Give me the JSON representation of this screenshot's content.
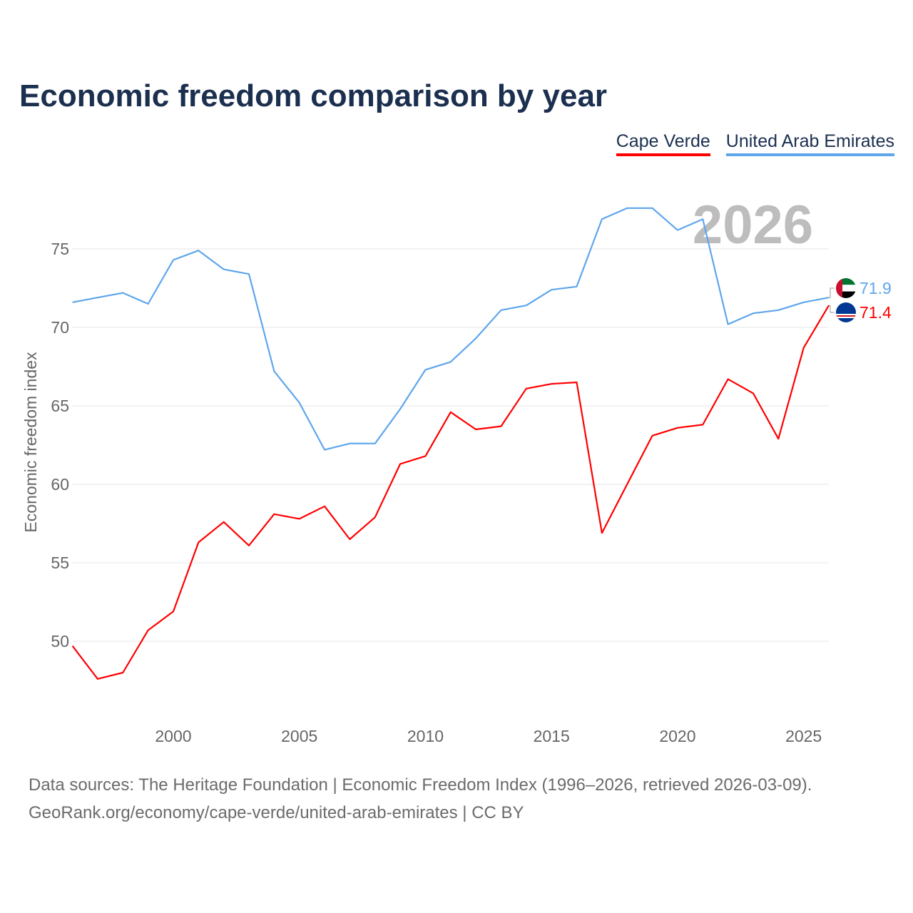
{
  "title": "Economic freedom comparison by year",
  "footer": {
    "line1": "Data sources: The Heritage Foundation | Economic Freedom Index (1996–2026, retrieved 2026-03-09).",
    "line2": "GeoRank.org/economy/cape-verde/united-arab-emirates | CC BY"
  },
  "chart_data": {
    "type": "line",
    "title": "Economic freedom comparison by year",
    "xlabel": "",
    "ylabel": "Economic freedom index",
    "watermark_year": "2026",
    "xlim": [
      1996,
      2026
    ],
    "ylim": [
      45.2,
      79.5
    ],
    "xticks": [
      2000,
      2005,
      2010,
      2015,
      2020,
      2025
    ],
    "yticks": [
      50,
      55,
      60,
      65,
      70,
      75
    ],
    "grid": true,
    "legend_position": "top-right",
    "x": [
      1996,
      1997,
      1998,
      1999,
      2000,
      2001,
      2002,
      2003,
      2004,
      2005,
      2006,
      2007,
      2008,
      2009,
      2010,
      2011,
      2012,
      2013,
      2014,
      2015,
      2016,
      2017,
      2018,
      2019,
      2020,
      2021,
      2022,
      2023,
      2024,
      2025,
      2026
    ],
    "series": [
      {
        "name": "Cape Verde",
        "color": "#ff0000",
        "end_label": "71.4",
        "flag": "cape-verde",
        "values": [
          49.7,
          47.6,
          48.0,
          50.7,
          51.9,
          56.3,
          57.6,
          56.1,
          58.1,
          57.8,
          58.6,
          56.5,
          57.9,
          61.3,
          61.8,
          64.6,
          63.5,
          63.7,
          66.1,
          66.4,
          66.5,
          56.9,
          60.0,
          63.1,
          63.6,
          63.8,
          66.7,
          65.8,
          62.9,
          68.7,
          71.4
        ]
      },
      {
        "name": "United Arab Emirates",
        "color": "#5ea6ec",
        "end_label": "71.9",
        "flag": "uae",
        "values": [
          71.6,
          71.9,
          72.2,
          71.5,
          74.3,
          74.9,
          73.7,
          73.4,
          67.2,
          65.2,
          62.2,
          62.6,
          62.6,
          64.8,
          67.3,
          67.8,
          69.3,
          71.1,
          71.4,
          72.4,
          72.6,
          76.9,
          77.6,
          77.6,
          76.2,
          76.9,
          70.2,
          70.9,
          71.1,
          71.6,
          71.9
        ]
      }
    ]
  }
}
